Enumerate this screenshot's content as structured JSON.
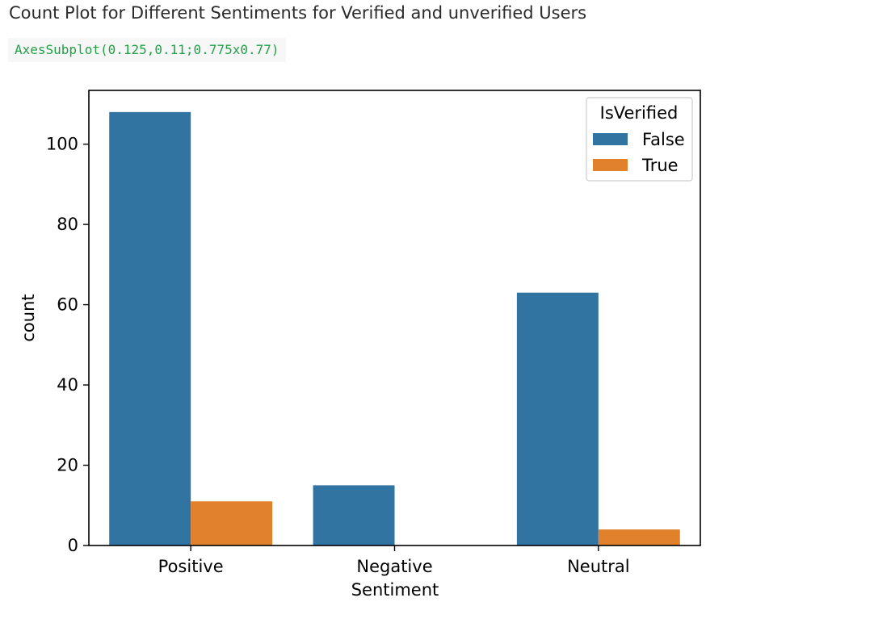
{
  "heading": "Count Plot for Different Sentiments for Verified and unverified Users",
  "output_repr": "AxesSubplot(0.125,0.11;0.775x0.77)",
  "colors": {
    "false_series": "#3274a1",
    "true_series": "#e1812c"
  },
  "chart_data": {
    "type": "bar",
    "title": "",
    "xlabel": "Sentiment",
    "ylabel": "count",
    "categories": [
      "Positive",
      "Negative",
      "Neutral"
    ],
    "series": [
      {
        "name": "False",
        "values": [
          108,
          15,
          63
        ]
      },
      {
        "name": "True",
        "values": [
          11,
          0,
          4
        ]
      }
    ],
    "ylim": [
      0,
      113.4
    ],
    "yticks": [
      0,
      20,
      40,
      60,
      80,
      100
    ],
    "grid": false,
    "legend": {
      "title": "IsVerified",
      "placement": "top-right",
      "entries": [
        "False",
        "True"
      ]
    }
  }
}
